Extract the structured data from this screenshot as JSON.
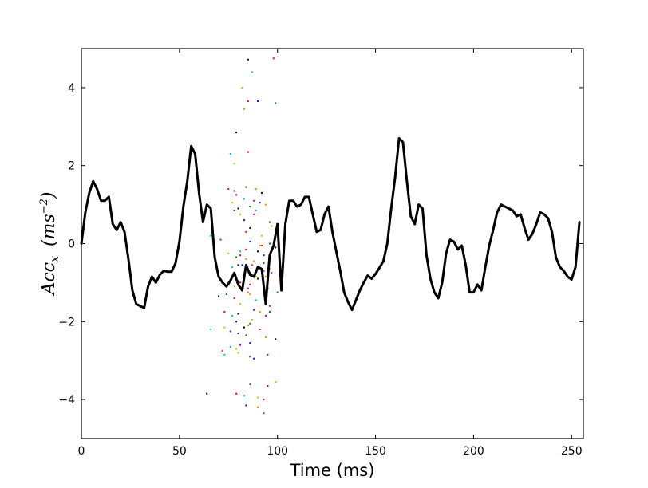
{
  "chart_data": {
    "type": "line",
    "xlabel": "Time (ms)",
    "ylabel": {
      "base": "Acc",
      "subscript": "x",
      "unit_open": "(",
      "unit_base": "ms",
      "unit_exponent": "−2",
      "unit_close": ")"
    },
    "xlim": [
      0,
      256
    ],
    "ylim": [
      -5,
      5
    ],
    "x_ticks": [
      0,
      50,
      100,
      150,
      200,
      250
    ],
    "y_ticks": [
      -4,
      -2,
      0,
      2,
      4
    ],
    "x_tick_labels": [
      "0",
      "50",
      "100",
      "150",
      "200",
      "250"
    ],
    "y_tick_labels": [
      "−4",
      "−2",
      "0",
      "2",
      "4"
    ],
    "grid": false,
    "legend": "none",
    "series": [
      {
        "color": "#000000",
        "x": [
          0,
          2,
          4,
          6,
          8,
          10,
          12,
          14,
          16,
          18,
          20,
          22,
          24,
          26,
          28,
          30,
          32,
          34,
          36,
          38,
          40,
          42,
          44,
          46,
          48,
          50,
          52,
          54,
          56,
          58,
          60,
          62,
          64,
          66,
          68,
          70,
          72,
          74,
          76,
          78,
          80,
          82,
          84,
          86,
          88,
          90,
          92,
          94,
          96,
          98,
          100,
          102,
          104,
          106,
          108,
          110,
          112,
          114,
          116,
          118,
          120,
          122,
          124,
          126,
          128,
          130,
          132,
          134,
          136,
          138,
          140,
          142,
          144,
          146,
          148,
          150,
          152,
          154,
          156,
          158,
          160,
          162,
          164,
          166,
          168,
          170,
          172,
          174,
          176,
          178,
          180,
          182,
          184,
          186,
          188,
          190,
          192,
          194,
          196,
          198,
          200,
          202,
          204,
          206,
          208,
          210,
          212,
          214,
          216,
          218,
          220,
          222,
          224,
          226,
          228,
          230,
          232,
          234,
          236,
          238,
          240,
          242,
          244,
          246,
          248,
          250,
          252,
          254
        ],
        "y": [
          0,
          0.8,
          1.3,
          1.6,
          1.4,
          1.1,
          1.1,
          1.2,
          0.5,
          0.35,
          0.55,
          0.3,
          -0.4,
          -1.2,
          -1.55,
          -1.6,
          -1.65,
          -1.1,
          -0.85,
          -1.0,
          -0.8,
          -0.7,
          -0.72,
          -0.72,
          -0.5,
          0.05,
          0.95,
          1.6,
          2.5,
          2.3,
          1.3,
          0.55,
          1.0,
          0.9,
          -0.35,
          -0.85,
          -1.0,
          -1.1,
          -0.95,
          -0.75,
          -1.05,
          -1.2,
          -0.55,
          -0.8,
          -0.85,
          -0.6,
          -0.65,
          -1.55,
          -0.3,
          -0.05,
          0.5,
          -1.2,
          0.5,
          1.1,
          1.1,
          0.95,
          1.0,
          1.2,
          1.2,
          0.75,
          0.3,
          0.35,
          0.75,
          0.95,
          0.3,
          -0.2,
          -0.7,
          -1.25,
          -1.5,
          -1.7,
          -1.45,
          -1.2,
          -1.0,
          -0.82,
          -0.9,
          -0.78,
          -0.62,
          -0.45,
          0.0,
          0.9,
          1.7,
          2.7,
          2.6,
          1.6,
          0.7,
          0.5,
          1.0,
          0.9,
          -0.3,
          -0.9,
          -1.25,
          -1.4,
          -1.0,
          -0.25,
          0.1,
          0.05,
          -0.15,
          -0.05,
          -0.55,
          -1.25,
          -1.25,
          -1.05,
          -1.2,
          -0.6,
          -0.05,
          0.35,
          0.8,
          1.0,
          0.95,
          0.9,
          0.85,
          0.7,
          0.75,
          0.4,
          0.1,
          0.25,
          0.5,
          0.8,
          0.75,
          0.65,
          0.3,
          -0.35,
          -0.6,
          -0.7,
          -0.85,
          -0.92,
          -0.6,
          0.55
        ]
      }
    ],
    "scatter": {
      "colors": [
        "#000000",
        "#ff0000",
        "#00bfbf",
        "#bfbf00",
        "#bf00bf",
        "#0000ff",
        "#008000",
        "#ff8000"
      ],
      "x": [
        85,
        98,
        87,
        82,
        85,
        90,
        99,
        83,
        79,
        85,
        76,
        78,
        75,
        78,
        84,
        89,
        92,
        79,
        83,
        77,
        88,
        91,
        86,
        94,
        80,
        78,
        89,
        81,
        88,
        83,
        96,
        97,
        86,
        84,
        66,
        92,
        71,
        86,
        96,
        91,
        99,
        84,
        81,
        75,
        81,
        93,
        79,
        88,
        80,
        87,
        77,
        96,
        93,
        86,
        87,
        94,
        90,
        81,
        75,
        78,
        85,
        93,
        100,
        86,
        70,
        78,
        89,
        81,
        96,
        88,
        96,
        91,
        80,
        73,
        77,
        87,
        94,
        79,
        86,
        85,
        83,
        91,
        66,
        73,
        76,
        80,
        84,
        94,
        99,
        72,
        73,
        80,
        86,
        88,
        95,
        99,
        64,
        79,
        83,
        90,
        93,
        84,
        93,
        90,
        86,
        95,
        76,
        79,
        81,
        86,
        74,
        85,
        95,
        86,
        80,
        89,
        97,
        82,
        93,
        84,
        90,
        92
      ],
      "y": [
        4.72,
        4.75,
        4.4,
        4.0,
        3.65,
        3.65,
        3.6,
        3.45,
        2.85,
        2.35,
        2.3,
        2.05,
        1.4,
        1.35,
        1.45,
        1.4,
        1.3,
        1.25,
        1.15,
        1.05,
        1.1,
        1.05,
        0.95,
        1.0,
        0.9,
        0.85,
        0.85,
        0.75,
        0.75,
        0.6,
        0.55,
        0.45,
        0.4,
        0.3,
        0.2,
        0.2,
        0.1,
        0.05,
        0.0,
        -0.05,
        -0.1,
        -0.15,
        -0.2,
        -0.25,
        -0.3,
        -0.3,
        -0.35,
        -0.45,
        -0.55,
        -0.55,
        -0.6,
        -0.65,
        -0.7,
        -0.75,
        -0.8,
        -0.85,
        -0.9,
        -1.0,
        -1.05,
        -1.1,
        -1.15,
        -1.2,
        -1.25,
        -1.3,
        -1.35,
        -1.4,
        -1.45,
        -1.55,
        -1.6,
        -1.7,
        -1.75,
        -1.75,
        -1.8,
        -1.75,
        -1.85,
        -1.95,
        -1.85,
        -2.0,
        -2.05,
        -2.1,
        -2.15,
        -2.2,
        -2.2,
        -2.15,
        -2.25,
        -2.3,
        -2.35,
        -2.4,
        -2.45,
        -2.75,
        -2.85,
        -2.8,
        -2.9,
        -2.95,
        -2.85,
        -3.55,
        -3.85,
        -3.85,
        -3.9,
        -3.95,
        -4.0,
        -4.15,
        -4.35,
        -4.2,
        -3.6,
        -3.65,
        -2.65,
        -2.7,
        -2.6,
        -2.55,
        -1.3,
        -1.25,
        -1.15,
        -1.05,
        -0.95,
        -0.85,
        -0.75,
        -0.55,
        -0.5,
        -0.4,
        -0.2,
        -0.05
      ]
    }
  }
}
